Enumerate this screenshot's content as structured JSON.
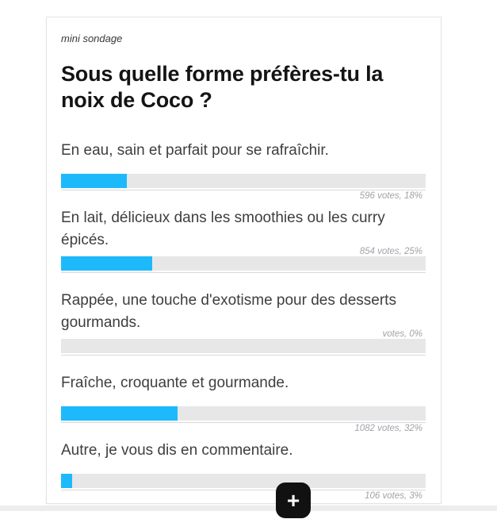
{
  "card": {
    "eyebrow": "mini sondage",
    "title": "Sous quelle forme préfères-tu la noix de Coco ?"
  },
  "poll": {
    "options": [
      {
        "label": "En eau, sain et parfait pour se rafraîchir.",
        "votes_label": "596 votes, 18%",
        "percent": 18
      },
      {
        "label": "En lait, délicieux dans les smoothies ou les curry épicés.",
        "votes_label": "854 votes, 25%",
        "percent": 25
      },
      {
        "label": "Rappée, une touche d'exotisme pour des desserts gourmands.",
        "votes_label": "votes, 0%",
        "percent": 0
      },
      {
        "label": "Fraîche, croquante et gourmande.",
        "votes_label": "1082 votes, 32%",
        "percent": 32
      },
      {
        "label": "Autre, je vous dis en commentaire.",
        "votes_label": "106 votes, 3%",
        "percent": 3
      }
    ],
    "colors": {
      "bar_fill": "#1db9fb",
      "bar_track": "#e7e7e7",
      "accent_button": "#111111"
    }
  },
  "add_button": {
    "label": "+"
  }
}
